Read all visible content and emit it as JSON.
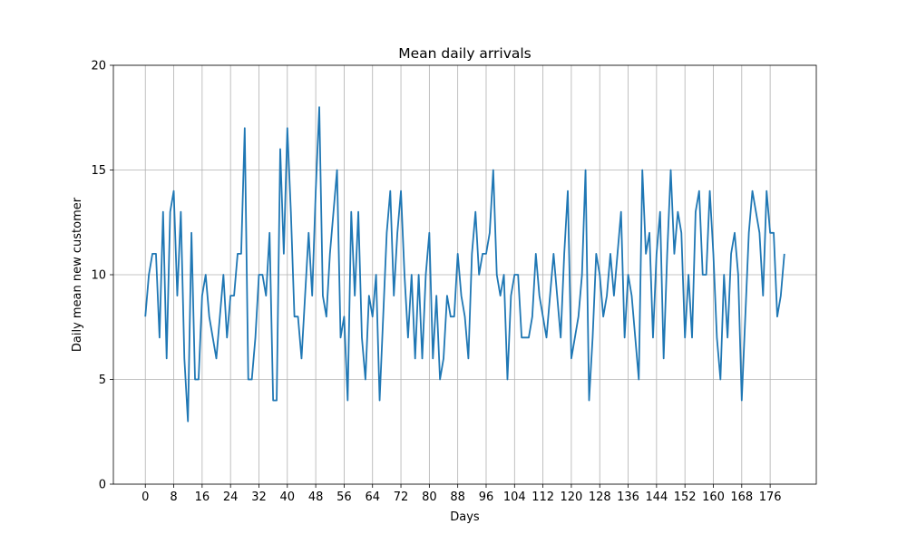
{
  "chart_data": {
    "type": "line",
    "title": "Mean daily arrivals",
    "xlabel": "Days",
    "ylabel": "Daily mean new customer",
    "xlim": [
      -9,
      189
    ],
    "ylim": [
      0,
      20
    ],
    "xticks": [
      0,
      8,
      16,
      24,
      32,
      40,
      48,
      56,
      64,
      72,
      80,
      88,
      96,
      104,
      112,
      120,
      128,
      136,
      144,
      152,
      160,
      168,
      176
    ],
    "yticks": [
      0,
      5,
      10,
      15,
      20
    ],
    "grid": true,
    "line_color": "#1f77b4",
    "series": [
      {
        "values": [
          8,
          10,
          11,
          11,
          7,
          13,
          6,
          13,
          14,
          9,
          13,
          6,
          3,
          12,
          5,
          5,
          9,
          10,
          8,
          7,
          6,
          8,
          10,
          7,
          9,
          9,
          11,
          11,
          17,
          5,
          5,
          7,
          10,
          10,
          9,
          12,
          4,
          4,
          16,
          11,
          17,
          13,
          8,
          8,
          6,
          9,
          12,
          9,
          14,
          18,
          9,
          8,
          11,
          13,
          15,
          7,
          8,
          4,
          13,
          9,
          13,
          7,
          5,
          9,
          8,
          10,
          4,
          8,
          12,
          14,
          9,
          12,
          14,
          10,
          7,
          10,
          6,
          10,
          6,
          10,
          12,
          6,
          9,
          5,
          6,
          9,
          8,
          8,
          11,
          9,
          8,
          6,
          11,
          13,
          10,
          11,
          11,
          12,
          15,
          10,
          9,
          10,
          5,
          9,
          10,
          10,
          7,
          7,
          7,
          8,
          11,
          9,
          8,
          7,
          9,
          11,
          9,
          7,
          11,
          14,
          6,
          7,
          8,
          10,
          15,
          4,
          7,
          11,
          10,
          8,
          9,
          11,
          9,
          11,
          13,
          7,
          10,
          9,
          7,
          5,
          15,
          11,
          12,
          7,
          11,
          13,
          6,
          11,
          15,
          11,
          13,
          12,
          7,
          10,
          7,
          13,
          14,
          10,
          10,
          14,
          11,
          7,
          5,
          10,
          7,
          11,
          12,
          10,
          4,
          8,
          12,
          14,
          13,
          12,
          9,
          14,
          12,
          12,
          8,
          9,
          11
        ]
      }
    ]
  }
}
